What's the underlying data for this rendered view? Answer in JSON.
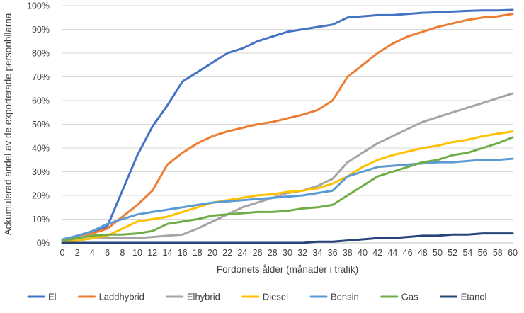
{
  "chart_data": {
    "type": "line",
    "title": "",
    "xlabel": "Fordonets ålder (månader i trafik)",
    "ylabel": "Ackumulerad andel av de exporterade personbilarna",
    "xlim": [
      0,
      60
    ],
    "ylim": [
      0,
      100
    ],
    "x_ticks": [
      "0",
      "2",
      "4",
      "6",
      "8",
      "10",
      "12",
      "14",
      "16",
      "18",
      "20",
      "22",
      "24",
      "26",
      "28",
      "30",
      "32",
      "34",
      "36",
      "38",
      "40",
      "42",
      "44",
      "46",
      "48",
      "50",
      "52",
      "54",
      "56",
      "58",
      "60"
    ],
    "y_ticks": [
      "0%",
      "10%",
      "20%",
      "30%",
      "40%",
      "50%",
      "60%",
      "70%",
      "80%",
      "90%",
      "100%"
    ],
    "grid": "horizontal",
    "legend_position": "bottom",
    "x": [
      0,
      2,
      4,
      6,
      8,
      10,
      12,
      14,
      16,
      18,
      20,
      22,
      24,
      26,
      28,
      30,
      32,
      34,
      36,
      38,
      40,
      42,
      44,
      46,
      48,
      50,
      52,
      54,
      56,
      58,
      60
    ],
    "series": [
      {
        "name": "El",
        "color": "#4472c4",
        "values": [
          1,
          3,
          4,
          7,
          22,
          37,
          49,
          58,
          68,
          72,
          76,
          80,
          82,
          85,
          87,
          89,
          90,
          91,
          92,
          95,
          95.5,
          96,
          96,
          96.5,
          97,
          97.2,
          97.5,
          97.8,
          98,
          98,
          98.2
        ]
      },
      {
        "name": "Laddhybrid",
        "color": "#ed7d31",
        "values": [
          1,
          3,
          4,
          6,
          11,
          16,
          22,
          33,
          38,
          42,
          45,
          47,
          48.5,
          50,
          51,
          52.5,
          54,
          56,
          60,
          70,
          75,
          80,
          84,
          87,
          89,
          91,
          92.5,
          94,
          95,
          95.5,
          96.5
        ]
      },
      {
        "name": "Elhybrid",
        "color": "#a5a5a5",
        "values": [
          1,
          1,
          2,
          2,
          2,
          2,
          2.5,
          3,
          3.5,
          6,
          9,
          12,
          15,
          17,
          19,
          21,
          22,
          24,
          27,
          34,
          38,
          42,
          45,
          48,
          51,
          53,
          55,
          57,
          59,
          61,
          63
        ]
      },
      {
        "name": "Diesel",
        "color": "#ffc000",
        "values": [
          0,
          1,
          2,
          3,
          6,
          9,
          10,
          11,
          13,
          15,
          17,
          18,
          19,
          20,
          20.5,
          21.5,
          22,
          23,
          25,
          28,
          32,
          35,
          37,
          38.5,
          40,
          41,
          42.5,
          43.5,
          45,
          46,
          47
        ]
      },
      {
        "name": "Bensin",
        "color": "#5b9bd5",
        "values": [
          1.5,
          3,
          5,
          8,
          10,
          12,
          13,
          14,
          15,
          16,
          17,
          17.5,
          18,
          18.5,
          19,
          19.5,
          20,
          21,
          22,
          28,
          30,
          32,
          32.5,
          33,
          33.5,
          34,
          34,
          34.5,
          35,
          35,
          35.5
        ]
      },
      {
        "name": "Gas",
        "color": "#70ad47",
        "values": [
          1,
          2,
          3,
          3.5,
          3.5,
          4,
          5,
          8,
          9,
          10,
          11.5,
          12,
          12.5,
          13,
          13,
          13.5,
          14.5,
          15,
          16,
          20,
          24,
          28,
          30,
          32,
          34,
          35,
          37,
          38,
          40,
          42,
          44.5
        ]
      },
      {
        "name": "Etanol",
        "color": "#264478",
        "values": [
          0,
          0,
          0,
          0,
          0,
          0,
          0,
          0,
          0,
          0,
          0,
          0,
          0,
          0,
          0,
          0,
          0,
          0.5,
          0.5,
          1,
          1.5,
          2,
          2,
          2.5,
          3,
          3,
          3.5,
          3.5,
          4,
          4,
          4
        ]
      }
    ]
  }
}
